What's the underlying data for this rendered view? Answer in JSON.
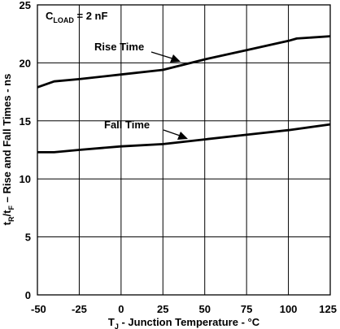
{
  "chart_data": {
    "type": "line",
    "xlabel": {
      "main": "T",
      "sub": "J",
      "rest": " -  Junction Temperature - °C"
    },
    "ylabel": {
      "p1": "t",
      "s1": "R",
      "p2": "/t",
      "s2": "F",
      "p3": " – Rise and Fall Times - ns"
    },
    "xlim": [
      -50,
      125
    ],
    "ylim": [
      0,
      25
    ],
    "xticks": [
      -50,
      -25,
      0,
      25,
      50,
      75,
      100,
      125
    ],
    "yticks": [
      0,
      5,
      10,
      15,
      20,
      25
    ],
    "grid": true,
    "condition": {
      "prefix": "C",
      "sub": "LOAD",
      "suffix": " = 2 nF"
    },
    "series": [
      {
        "name": "Rise Time",
        "x": [
          -50,
          -40,
          -25,
          0,
          25,
          50,
          75,
          100,
          105,
          125
        ],
        "y": [
          17.9,
          18.4,
          18.6,
          19.0,
          19.4,
          20.3,
          21.1,
          21.9,
          22.1,
          22.3
        ]
      },
      {
        "name": "Fall Time",
        "x": [
          -50,
          -40,
          -25,
          0,
          25,
          50,
          75,
          100,
          125
        ],
        "y": [
          12.3,
          12.3,
          12.5,
          12.8,
          13.0,
          13.4,
          13.8,
          14.2,
          14.7
        ]
      }
    ]
  }
}
